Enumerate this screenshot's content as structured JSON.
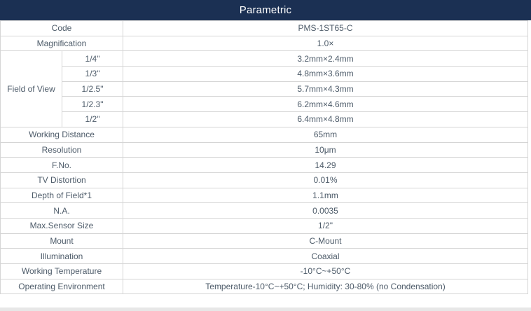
{
  "page": {
    "title": "Parametric"
  },
  "colors": {
    "header_bg": "#1b3053",
    "header_text": "#ffffff",
    "cell_text": "#4d5b69",
    "border": "#d5d5d5",
    "row_bg": "#ffffff"
  },
  "table": {
    "rows_top": [
      {
        "label": "Code",
        "value": "PMS-1ST65-C"
      },
      {
        "label": "Magnification",
        "value": "1.0×"
      }
    ],
    "field_of_view": {
      "label": "Field of View",
      "entries": [
        {
          "sensor": "1/4\"",
          "value": "3.2mm×2.4mm"
        },
        {
          "sensor": "1/3\"",
          "value": "4.8mm×3.6mm"
        },
        {
          "sensor": "1/2.5\"",
          "value": "5.7mm×4.3mm"
        },
        {
          "sensor": "1/2.3\"",
          "value": "6.2mm×4.6mm"
        },
        {
          "sensor": "1/2\"",
          "value": "6.4mm×4.8mm"
        }
      ]
    },
    "rows_bottom": [
      {
        "label": "Working Distance",
        "value": "65mm"
      },
      {
        "label": "Resolution",
        "value": "10μm"
      },
      {
        "label": "F.No.",
        "value": "14.29"
      },
      {
        "label": "TV Distortion",
        "value": "0.01%"
      },
      {
        "label": "Depth of Field*1",
        "value": "1.1mm"
      },
      {
        "label": "N.A.",
        "value": "0.0035"
      },
      {
        "label": "Max.Sensor Size",
        "value": "1/2\""
      },
      {
        "label": "Mount",
        "value": "C-Mount"
      },
      {
        "label": "Illumination",
        "value": "Coaxial"
      },
      {
        "label": "Working Temperature",
        "value": "-10°C~+50°C"
      },
      {
        "label": "Operating Environment",
        "value": "Temperature-10°C~+50°C; Humidity: 30-80% (no Condensation)"
      }
    ]
  }
}
